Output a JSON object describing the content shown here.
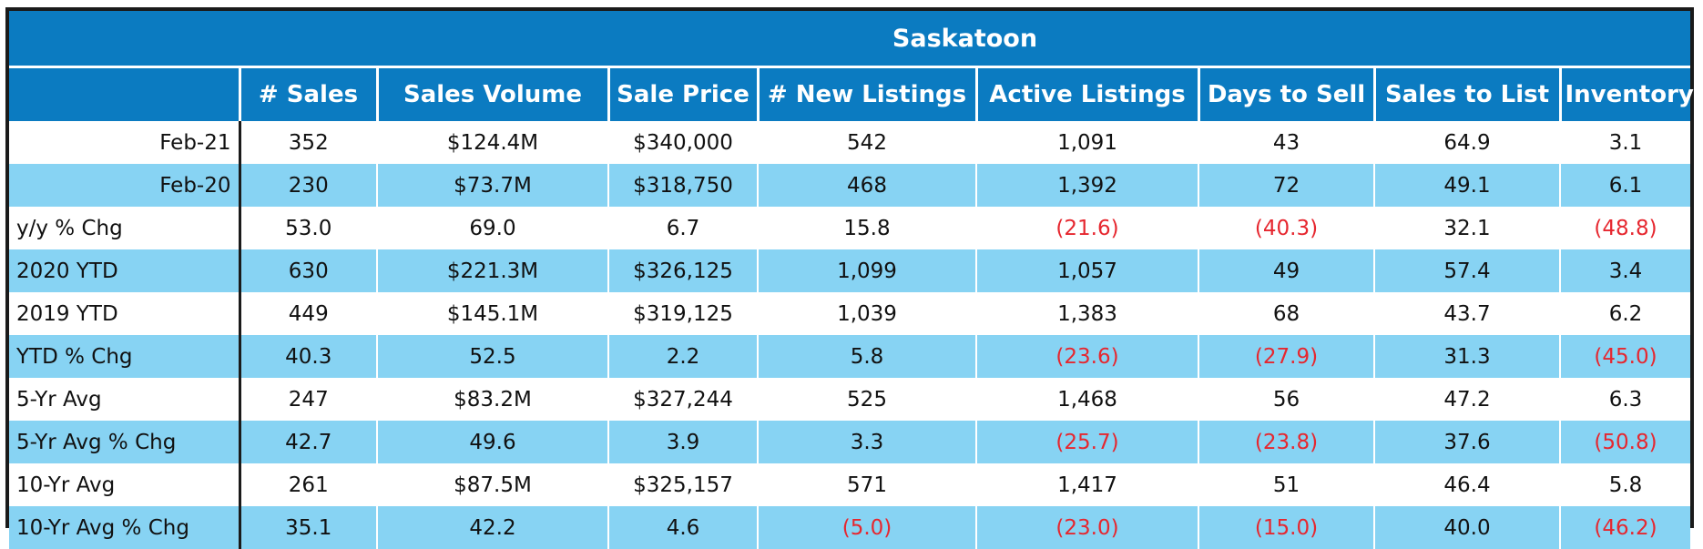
{
  "title": "Saskatoon",
  "columns": [
    "# Sales",
    "Sales Volume",
    "Sale Price",
    "# New Listings",
    "Active Listings",
    "Days to Sell",
    "Sales to List",
    "Inventory"
  ],
  "rows": [
    {
      "label": "Feb-21",
      "align": "right",
      "shade": "white",
      "values": [
        "352",
        "$124.4M",
        "$340,000",
        "542",
        "1,091",
        "43",
        "64.9",
        "3.1"
      ]
    },
    {
      "label": "Feb-20",
      "align": "right",
      "shade": "blue",
      "values": [
        "230",
        "$73.7M",
        "$318,750",
        "468",
        "1,392",
        "72",
        "49.1",
        "6.1"
      ]
    },
    {
      "label": "y/y % Chg",
      "align": "left",
      "shade": "white",
      "values": [
        "53.0",
        "69.0",
        "6.7",
        "15.8",
        "(21.6)",
        "(40.3)",
        "32.1",
        "(48.8)"
      ]
    },
    {
      "label": "2020 YTD",
      "align": "left",
      "shade": "blue",
      "values": [
        "630",
        "$221.3M",
        "$326,125",
        "1,099",
        "1,057",
        "49",
        "57.4",
        "3.4"
      ]
    },
    {
      "label": "2019 YTD",
      "align": "left",
      "shade": "white",
      "values": [
        "449",
        "$145.1M",
        "$319,125",
        "1,039",
        "1,383",
        "68",
        "43.7",
        "6.2"
      ]
    },
    {
      "label": "YTD % Chg",
      "align": "left",
      "shade": "blue",
      "values": [
        "40.3",
        "52.5",
        "2.2",
        "5.8",
        "(23.6)",
        "(27.9)",
        "31.3",
        "(45.0)"
      ]
    },
    {
      "label": "5-Yr Avg",
      "align": "left",
      "shade": "white",
      "values": [
        "247",
        "$83.2M",
        "$327,244",
        "525",
        "1,468",
        "56",
        "47.2",
        "6.3"
      ]
    },
    {
      "label": "5-Yr Avg % Chg",
      "align": "left",
      "shade": "blue",
      "values": [
        "42.7",
        "49.6",
        "3.9",
        "3.3",
        "(25.7)",
        "(23.8)",
        "37.6",
        "(50.8)"
      ]
    },
    {
      "label": "10-Yr Avg",
      "align": "left",
      "shade": "white",
      "values": [
        "261",
        "$87.5M",
        "$325,157",
        "571",
        "1,417",
        "51",
        "46.4",
        "5.8"
      ]
    },
    {
      "label": "10-Yr Avg % Chg",
      "align": "left",
      "shade": "blue",
      "values": [
        "35.1",
        "42.2",
        "4.6",
        "(5.0)",
        "(23.0)",
        "(15.0)",
        "40.0",
        "(46.2)"
      ]
    }
  ],
  "colors": {
    "header_blue": "#0b7bc1",
    "row_blue": "#87d3f3",
    "negative_red": "#e6272f"
  }
}
